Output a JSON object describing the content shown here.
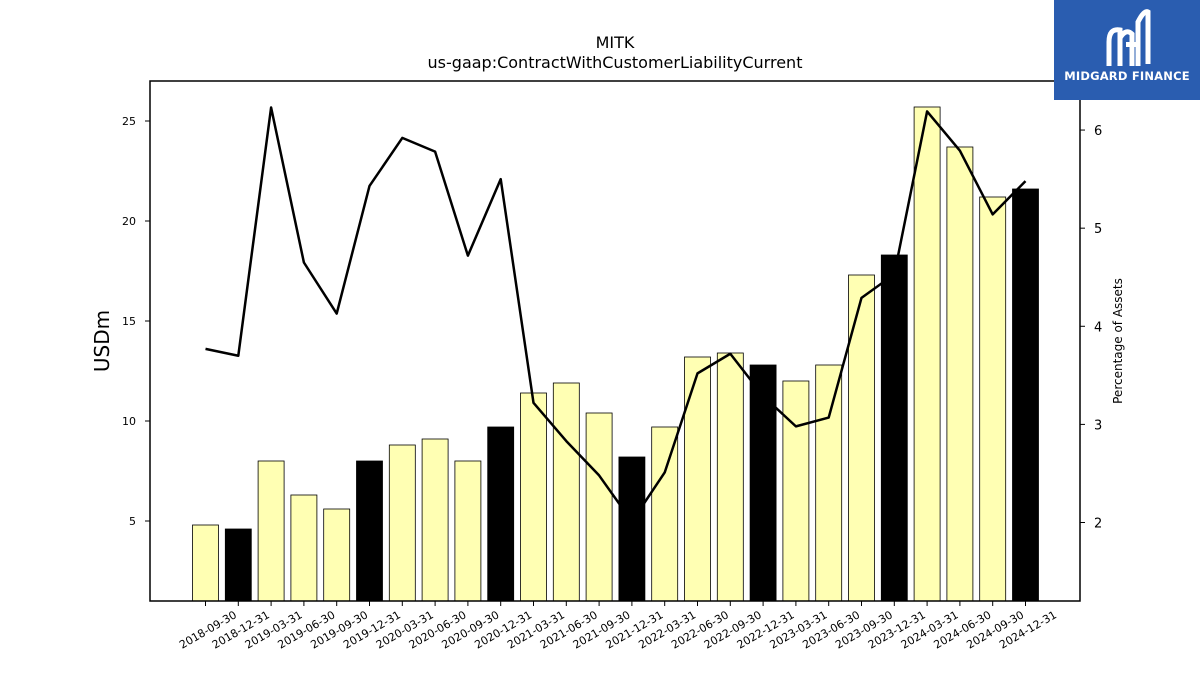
{
  "chart_data": {
    "type": "bar",
    "title": "MITK",
    "subtitle": "us-gaap:ContractWithCustomerLiabilityCurrent",
    "ylabel": "USDm",
    "y2label": "Percentage of Assets",
    "ylim": [
      1,
      27
    ],
    "y2lim": [
      1.2,
      6.5
    ],
    "yticks": [
      5,
      10,
      15,
      20,
      25
    ],
    "y2ticks": [
      2,
      3,
      4,
      5,
      6
    ],
    "categories": [
      "2018-09-30",
      "2018-12-31",
      "2019-03-31",
      "2019-06-30",
      "2019-09-30",
      "2019-12-31",
      "2020-03-31",
      "2020-06-30",
      "2020-09-30",
      "2020-12-31",
      "2021-03-31",
      "2021-06-30",
      "2021-09-30",
      "2021-12-31",
      "2022-03-31",
      "2022-06-30",
      "2022-09-30",
      "2022-12-31",
      "2023-03-31",
      "2023-06-30",
      "2023-09-30",
      "2023-12-31",
      "2024-03-31",
      "2024-06-30",
      "2024-09-30",
      "2024-12-31"
    ],
    "series": [
      {
        "type": "bar",
        "values": [
          4.8,
          4.6,
          8.0,
          6.3,
          5.6,
          8.0,
          8.8,
          9.1,
          8.0,
          9.7,
          11.4,
          11.9,
          10.4,
          8.2,
          9.7,
          13.2,
          13.4,
          12.8,
          12.0,
          12.8,
          17.3,
          18.3,
          25.7,
          23.7,
          21.2,
          21.6
        ],
        "colors": [
          "#ffffb3",
          "#000000",
          "#ffffb3",
          "#ffffb3",
          "#ffffb3",
          "#000000",
          "#ffffb3",
          "#ffffb3",
          "#ffffb3",
          "#000000",
          "#ffffb3",
          "#ffffb3",
          "#ffffb3",
          "#000000",
          "#ffffb3",
          "#ffffb3",
          "#ffffb3",
          "#000000",
          "#ffffb3",
          "#ffffb3",
          "#ffffb3",
          "#000000",
          "#ffffb3",
          "#ffffb3",
          "#ffffb3",
          "#000000"
        ]
      },
      {
        "type": "line",
        "axis": "right",
        "color": "#000000",
        "values": [
          3.77,
          3.7,
          6.23,
          4.65,
          4.13,
          5.43,
          5.92,
          5.78,
          4.72,
          5.5,
          3.22,
          2.83,
          2.48,
          2.01,
          2.51,
          3.52,
          3.72,
          3.29,
          2.98,
          3.07,
          4.29,
          4.53,
          6.19,
          5.79,
          5.14,
          5.48
        ]
      }
    ],
    "grid": false
  },
  "logo": {
    "text": "MIDGARD FINANCE",
    "bg": "#2a5db0"
  }
}
